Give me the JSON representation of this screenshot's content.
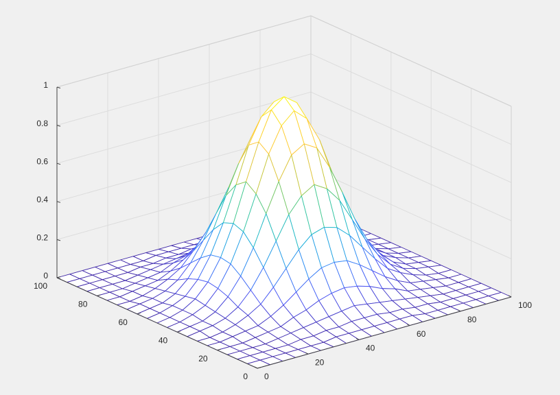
{
  "chart_data": {
    "type": "mesh",
    "x": [
      0,
      5,
      10,
      15,
      20,
      25,
      30,
      35,
      40,
      45,
      50,
      55,
      60,
      65,
      70,
      75,
      80,
      85,
      90,
      95,
      100
    ],
    "y": [
      0,
      5,
      10,
      15,
      20,
      25,
      30,
      35,
      40,
      45,
      50,
      55,
      60,
      65,
      70,
      75,
      80,
      85,
      90,
      95,
      100
    ],
    "z": [
      [
        0,
        0,
        0,
        0,
        0,
        0,
        0,
        0,
        0,
        0,
        0,
        0,
        0,
        0,
        0,
        0,
        0,
        0,
        0,
        0,
        0
      ],
      [
        0,
        0,
        0,
        0,
        0,
        0,
        0,
        0.01,
        0.01,
        0.01,
        0.01,
        0.01,
        0.01,
        0.01,
        0,
        0,
        0,
        0,
        0,
        0,
        0
      ],
      [
        0,
        0,
        0,
        0,
        0,
        0.01,
        0.01,
        0.02,
        0.02,
        0.03,
        0.03,
        0.03,
        0.02,
        0.02,
        0.01,
        0.01,
        0,
        0,
        0,
        0,
        0
      ],
      [
        0,
        0,
        0,
        0,
        0.01,
        0.02,
        0.03,
        0.04,
        0.05,
        0.06,
        0.07,
        0.06,
        0.05,
        0.04,
        0.03,
        0.02,
        0.01,
        0,
        0,
        0,
        0
      ],
      [
        0,
        0,
        0,
        0.01,
        0.02,
        0.03,
        0.06,
        0.08,
        0.11,
        0.13,
        0.14,
        0.13,
        0.11,
        0.08,
        0.06,
        0.03,
        0.02,
        0.01,
        0,
        0,
        0
      ],
      [
        0,
        0,
        0.01,
        0.02,
        0.03,
        0.06,
        0.1,
        0.15,
        0.2,
        0.24,
        0.25,
        0.24,
        0.2,
        0.15,
        0.1,
        0.06,
        0.03,
        0.02,
        0.01,
        0,
        0
      ],
      [
        0,
        0,
        0.01,
        0.03,
        0.06,
        0.1,
        0.17,
        0.25,
        0.33,
        0.39,
        0.41,
        0.39,
        0.33,
        0.25,
        0.17,
        0.1,
        0.06,
        0.03,
        0.01,
        0,
        0
      ],
      [
        0,
        0.01,
        0.02,
        0.04,
        0.08,
        0.15,
        0.25,
        0.37,
        0.49,
        0.57,
        0.61,
        0.57,
        0.49,
        0.37,
        0.25,
        0.15,
        0.08,
        0.04,
        0.02,
        0.01,
        0
      ],
      [
        0,
        0.01,
        0.02,
        0.05,
        0.11,
        0.2,
        0.33,
        0.49,
        0.64,
        0.76,
        0.8,
        0.76,
        0.64,
        0.49,
        0.33,
        0.2,
        0.11,
        0.05,
        0.02,
        0.01,
        0
      ],
      [
        0,
        0.01,
        0.03,
        0.06,
        0.13,
        0.24,
        0.39,
        0.57,
        0.76,
        0.89,
        0.95,
        0.89,
        0.76,
        0.57,
        0.39,
        0.24,
        0.13,
        0.06,
        0.03,
        0.01,
        0
      ],
      [
        0,
        0.01,
        0.03,
        0.07,
        0.14,
        0.25,
        0.41,
        0.61,
        0.8,
        0.95,
        1,
        0.95,
        0.8,
        0.61,
        0.41,
        0.25,
        0.14,
        0.07,
        0.03,
        0.01,
        0
      ],
      [
        0,
        0.01,
        0.03,
        0.06,
        0.13,
        0.24,
        0.39,
        0.57,
        0.76,
        0.89,
        0.95,
        0.89,
        0.76,
        0.57,
        0.39,
        0.24,
        0.13,
        0.06,
        0.03,
        0.01,
        0
      ],
      [
        0,
        0.01,
        0.02,
        0.05,
        0.11,
        0.2,
        0.33,
        0.49,
        0.64,
        0.76,
        0.8,
        0.76,
        0.64,
        0.49,
        0.33,
        0.2,
        0.11,
        0.05,
        0.02,
        0.01,
        0
      ],
      [
        0,
        0.01,
        0.02,
        0.04,
        0.08,
        0.15,
        0.25,
        0.37,
        0.49,
        0.57,
        0.61,
        0.57,
        0.49,
        0.37,
        0.25,
        0.15,
        0.08,
        0.04,
        0.02,
        0.01,
        0
      ],
      [
        0,
        0,
        0.01,
        0.03,
        0.06,
        0.1,
        0.17,
        0.25,
        0.33,
        0.39,
        0.41,
        0.39,
        0.33,
        0.25,
        0.17,
        0.1,
        0.06,
        0.03,
        0.01,
        0,
        0
      ],
      [
        0,
        0,
        0.01,
        0.02,
        0.03,
        0.06,
        0.1,
        0.15,
        0.2,
        0.24,
        0.25,
        0.24,
        0.2,
        0.15,
        0.1,
        0.06,
        0.03,
        0.02,
        0.01,
        0,
        0
      ],
      [
        0,
        0,
        0,
        0.01,
        0.02,
        0.03,
        0.06,
        0.08,
        0.11,
        0.13,
        0.14,
        0.13,
        0.11,
        0.08,
        0.06,
        0.03,
        0.02,
        0.01,
        0,
        0,
        0
      ],
      [
        0,
        0,
        0,
        0,
        0.01,
        0.02,
        0.03,
        0.04,
        0.05,
        0.06,
        0.07,
        0.06,
        0.05,
        0.04,
        0.03,
        0.02,
        0.01,
        0,
        0,
        0,
        0
      ],
      [
        0,
        0,
        0,
        0,
        0,
        0.01,
        0.01,
        0.02,
        0.02,
        0.03,
        0.03,
        0.03,
        0.02,
        0.02,
        0.01,
        0.01,
        0,
        0,
        0,
        0,
        0
      ],
      [
        0,
        0,
        0,
        0,
        0,
        0,
        0,
        0.01,
        0.01,
        0.01,
        0.01,
        0.01,
        0.01,
        0.01,
        0,
        0,
        0,
        0,
        0,
        0,
        0
      ],
      [
        0,
        0,
        0,
        0,
        0,
        0,
        0,
        0,
        0,
        0,
        0,
        0,
        0,
        0,
        0,
        0,
        0,
        0,
        0,
        0,
        0
      ]
    ],
    "xlim": [
      0,
      100
    ],
    "ylim": [
      0,
      100
    ],
    "zlim": [
      0,
      1
    ],
    "xticks": [
      0,
      20,
      40,
      60,
      80,
      100
    ],
    "yticks": [
      0,
      20,
      40,
      60,
      80,
      100
    ],
    "zticks": [
      0,
      0.2,
      0.4,
      0.6,
      0.8,
      1
    ],
    "grid": true,
    "colormap": "parula"
  }
}
